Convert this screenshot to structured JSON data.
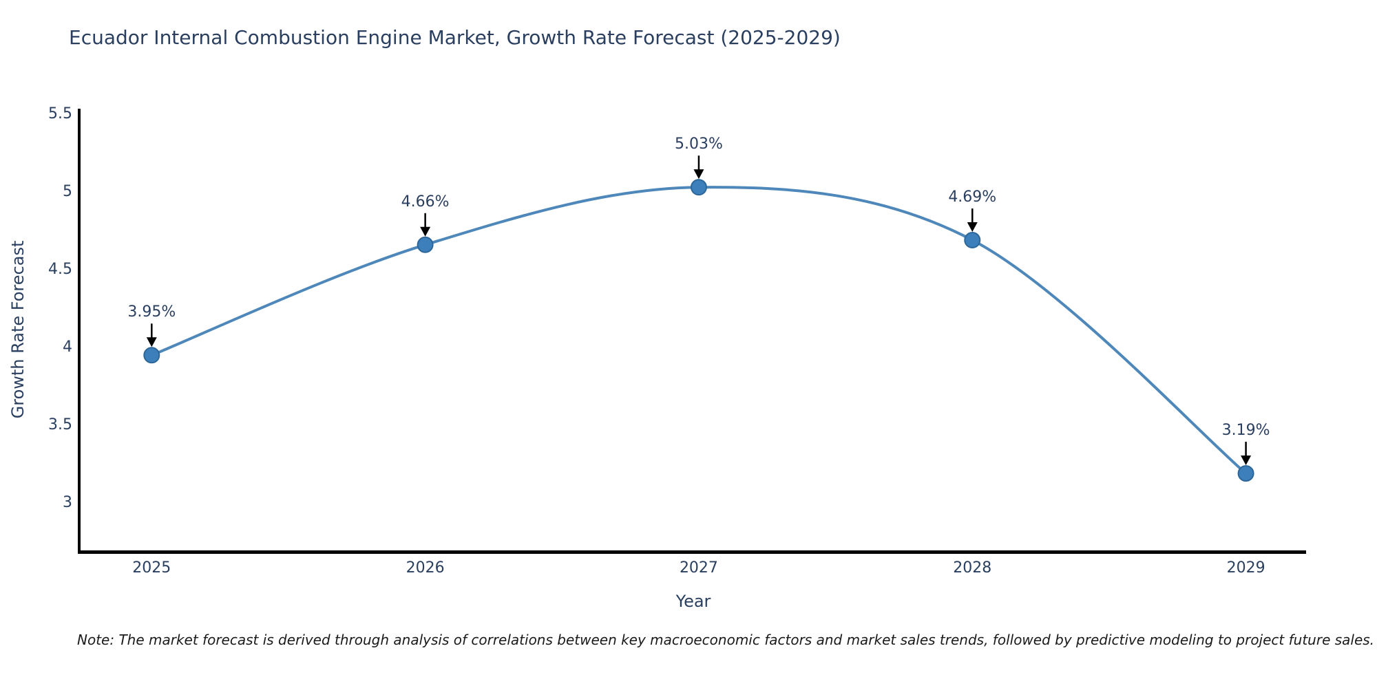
{
  "title": "Ecuador Internal Combustion Engine Market, Growth Rate Forecast (2025-2029)",
  "note": "Note: The market forecast is derived through analysis of correlations between key macroeconomic factors and market sales trends, followed by predictive modeling to project future sales.",
  "chart_data": {
    "type": "line",
    "title": "Ecuador Internal Combustion Engine Market, Growth Rate Forecast (2025-2029)",
    "xlabel": "Year",
    "ylabel": "Growth Rate Forecast",
    "x": [
      2025,
      2026,
      2027,
      2028,
      2029
    ],
    "values": [
      3.95,
      4.66,
      5.03,
      4.69,
      3.19
    ],
    "point_labels": [
      "3.95%",
      "4.66%",
      "5.03%",
      "4.69%",
      "3.19%"
    ],
    "xticks": [
      "2025",
      "2026",
      "2027",
      "2028",
      "2029"
    ],
    "yticks": [
      "3",
      "3.5",
      "4",
      "4.5",
      "5",
      "5.5"
    ],
    "xlim": [
      2024.74,
      2029.22
    ],
    "ylim": [
      2.695,
      5.535
    ],
    "line_shape": "spline",
    "grid": false,
    "legend": "none",
    "markers": true,
    "annotations_arrow": true,
    "colors": {
      "line": "#4e87ba",
      "marker_fill": "#3d7fba",
      "marker_stroke": "#2d6699",
      "arrow": "#000000",
      "text": "#2a3f5f",
      "axis_line": "#000000",
      "note_text": "#1a1a1a",
      "background": "#ffffff"
    }
  }
}
